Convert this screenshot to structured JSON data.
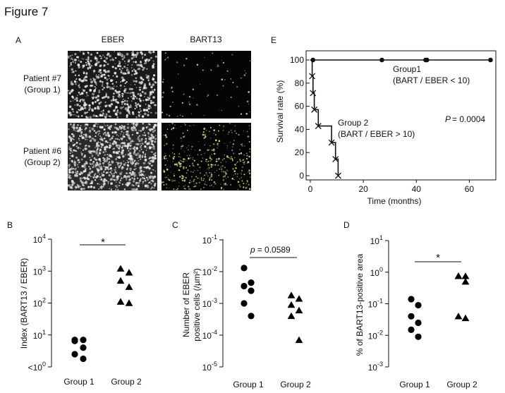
{
  "figure_title": "Figure 7",
  "panel_a": {
    "letter": "A",
    "col_labels": [
      "EBER",
      "BART13"
    ],
    "row_labels": [
      [
        "Patient #7",
        "(Group 1)"
      ],
      [
        "Patient #6",
        "(Group 2)"
      ]
    ]
  },
  "colors": {
    "ink": "#111111",
    "micro_bg": "#050505",
    "eber_signal": "#e6e6e6",
    "bart13_signal": "#d8e67a"
  },
  "chart_data": [
    {
      "panel": "B",
      "type": "scatter",
      "ylabel": "Index (BART13 / EBER)",
      "yscale": "log",
      "ylim": [
        1,
        10000
      ],
      "yticks": [
        {
          "value": 1,
          "base": "<10",
          "exp": "0"
        },
        {
          "value": 10,
          "base": "10",
          "exp": "1"
        },
        {
          "value": 100,
          "base": "10",
          "exp": "2"
        },
        {
          "value": 1000,
          "base": "10",
          "exp": "3"
        },
        {
          "value": 10000,
          "base": "10",
          "exp": "4"
        }
      ],
      "categories": [
        "Group 1",
        "Group 2"
      ],
      "series": [
        {
          "marker": "circle",
          "values": [
            7.0,
            7.0,
            6.5,
            4.0,
            2.5,
            1.8
          ]
        },
        {
          "marker": "triangle",
          "values": [
            1200,
            900,
            500,
            320,
            110,
            100
          ]
        }
      ],
      "annotation": "*"
    },
    {
      "panel": "C",
      "type": "scatter",
      "ylabel_lines": [
        "Number of EBER",
        "positive cells (/µm²)"
      ],
      "yscale": "log",
      "ylim": [
        1e-05,
        0.1
      ],
      "yticks": [
        {
          "value": 0.1,
          "base": "10",
          "exp": "-1"
        },
        {
          "value": 0.01,
          "base": "10",
          "exp": "-2"
        },
        {
          "value": 0.001,
          "base": "10",
          "exp": "-3"
        },
        {
          "value": 0.0001,
          "base": "10",
          "exp": "-4"
        },
        {
          "value": 1e-05,
          "base": "10",
          "exp": "-5"
        }
      ],
      "categories": [
        "Group 1",
        "Group 2"
      ],
      "series": [
        {
          "marker": "circle",
          "values": [
            0.013,
            0.0045,
            0.0035,
            0.0025,
            0.001,
            0.0004
          ]
        },
        {
          "marker": "triangle",
          "values": [
            0.0018,
            0.0014,
            0.0009,
            0.0006,
            0.0004,
            7e-05
          ]
        }
      ],
      "annotation_italic": "p",
      "annotation": "= 0.0589"
    },
    {
      "panel": "D",
      "type": "scatter",
      "ylabel": "% of BART13-positive area",
      "yscale": "log",
      "ylim": [
        0.001,
        10
      ],
      "yticks": [
        {
          "value": 10,
          "base": "10",
          "exp": "1"
        },
        {
          "value": 1,
          "base": "10",
          "exp": "0"
        },
        {
          "value": 0.1,
          "base": "10",
          "exp": "-1"
        },
        {
          "value": 0.01,
          "base": "10",
          "exp": "-2"
        },
        {
          "value": 0.001,
          "base": "10",
          "exp": "-3"
        }
      ],
      "categories": [
        "Group 1",
        "Group 2"
      ],
      "series": [
        {
          "marker": "circle",
          "values": [
            0.14,
            0.09,
            0.04,
            0.025,
            0.015,
            0.009
          ]
        },
        {
          "marker": "triangle",
          "values": [
            0.75,
            0.75,
            0.75,
            0.5,
            0.04,
            0.035
          ]
        }
      ],
      "annotation": "*"
    },
    {
      "panel": "E",
      "type": "line",
      "xlabel": "Time (months)",
      "ylabel": "Survival rate (%)",
      "xlim": [
        0,
        70
      ],
      "ylim": [
        0,
        100
      ],
      "xticks": [
        0,
        20,
        40,
        60
      ],
      "yticks": [
        0,
        20,
        40,
        60,
        80,
        100
      ],
      "series": [
        {
          "label_lines": [
            "Group1",
            "(BART / EBER < 10)"
          ],
          "marker": "circle",
          "steps": [
            [
              0,
              100
            ],
            [
              68,
              100
            ]
          ],
          "censored": [
            [
              1,
              100
            ],
            [
              27,
              100
            ],
            [
              43.5,
              100
            ],
            [
              44,
              100
            ],
            [
              68,
              100
            ]
          ]
        },
        {
          "label_lines": [
            "Group 2",
            "(BART / EBER > 10)"
          ],
          "marker": "x",
          "steps": [
            [
              0,
              100
            ],
            [
              0.7,
              100
            ],
            [
              0.7,
              86
            ],
            [
              1,
              86
            ],
            [
              1,
              71.4
            ],
            [
              1.5,
              71.4
            ],
            [
              1.5,
              57.1
            ],
            [
              3,
              57.1
            ],
            [
              3,
              42.9
            ],
            [
              8,
              42.9
            ],
            [
              8,
              28.6
            ],
            [
              9.5,
              28.6
            ],
            [
              9.5,
              14.3
            ],
            [
              10.5,
              14.3
            ],
            [
              10.5,
              0
            ]
          ],
          "events": [
            [
              0.7,
              86
            ],
            [
              1,
              71.4
            ],
            [
              1.5,
              57.1
            ],
            [
              3,
              42.9
            ],
            [
              8,
              28.6
            ],
            [
              9.5,
              14.3
            ],
            [
              10.5,
              0
            ]
          ]
        }
      ],
      "annotation_italic": "P",
      "annotation": "= 0.0004"
    }
  ]
}
